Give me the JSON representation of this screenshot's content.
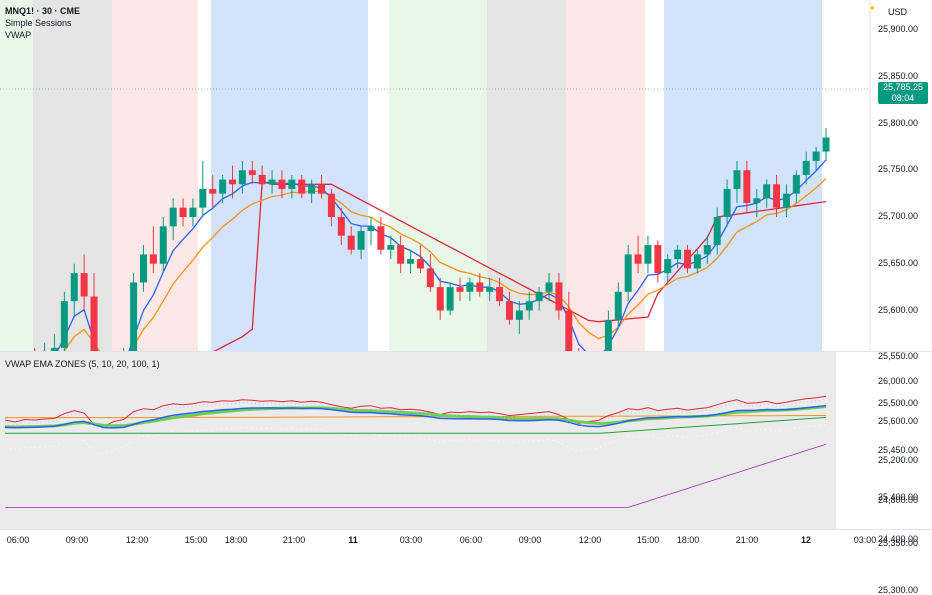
{
  "header": {
    "symbol": "MNQ1! · 30 · CME",
    "indicator_1": "Simple Sessions",
    "indicator_2": "VWAP",
    "currency": "USD"
  },
  "last_price": {
    "value": "25,785.25",
    "countdown": "08:04"
  },
  "price_axis": [
    "25,900.00",
    "25,850.00",
    "25,800.00",
    "25,750.00",
    "25,700.00",
    "25,650.00",
    "25,600.00",
    "25,550.00",
    "25,500.00",
    "25,450.00",
    "25,400.00",
    "25,350.00",
    "25,300.00"
  ],
  "indicator_panel": {
    "title": "VWAP EMA ZONES (5, 10, 20, 100, 1)",
    "axis": [
      "26,000.00",
      "25,600.00",
      "25,200.00",
      "24,800.00",
      "24,400.00"
    ]
  },
  "time_axis": [
    {
      "label": "06:00",
      "bold": false
    },
    {
      "label": "09:00",
      "bold": false
    },
    {
      "label": "12:00",
      "bold": false
    },
    {
      "label": "15:00",
      "bold": false
    },
    {
      "label": "18:00",
      "bold": false
    },
    {
      "label": "21:00",
      "bold": false
    },
    {
      "label": "11",
      "bold": true
    },
    {
      "label": "03:00",
      "bold": false
    },
    {
      "label": "06:00",
      "bold": false
    },
    {
      "label": "09:00",
      "bold": false
    },
    {
      "label": "12:00",
      "bold": false
    },
    {
      "label": "15:00",
      "bold": false
    },
    {
      "label": "18:00",
      "bold": false
    },
    {
      "label": "21:00",
      "bold": false
    },
    {
      "label": "12",
      "bold": true
    },
    {
      "label": "03:00",
      "bold": false
    }
  ],
  "colors": {
    "up": "#089981",
    "down": "#f23645",
    "ema_fast": "#2962ff",
    "ema_slow": "#f7931a",
    "vwap": "#e0273c",
    "session_asia": "#e5e5e5",
    "session_london": "#fde8e8",
    "session_ny": "#d3e3fb",
    "session_green": "#e8f7e8"
  },
  "chart_data": {
    "type": "candlestick",
    "ylim": [
      25260,
      25930
    ],
    "candles": [
      [
        25530,
        25555,
        25520,
        25545
      ],
      [
        25545,
        25550,
        25520,
        25525
      ],
      [
        25525,
        25555,
        25515,
        25550
      ],
      [
        25550,
        25560,
        25540,
        25545
      ],
      [
        25545,
        25565,
        25535,
        25555
      ],
      [
        25555,
        25575,
        25545,
        25560
      ],
      [
        25560,
        25620,
        25540,
        25610
      ],
      [
        25610,
        25650,
        25595,
        25640
      ],
      [
        25640,
        25660,
        25600,
        25615
      ],
      [
        25615,
        25640,
        25480,
        25500
      ],
      [
        25500,
        25530,
        25450,
        25480
      ],
      [
        25480,
        25540,
        25470,
        25530
      ],
      [
        25530,
        25560,
        25515,
        25550
      ],
      [
        25550,
        25640,
        25540,
        25630
      ],
      [
        25630,
        25670,
        25620,
        25660
      ],
      [
        25660,
        25690,
        25640,
        25650
      ],
      [
        25650,
        25700,
        25640,
        25690
      ],
      [
        25690,
        25720,
        25675,
        25710
      ],
      [
        25710,
        25720,
        25690,
        25700
      ],
      [
        25700,
        25720,
        25690,
        25710
      ],
      [
        25710,
        25760,
        25700,
        25730
      ],
      [
        25730,
        25745,
        25710,
        25725
      ],
      [
        25725,
        25745,
        25715,
        25740
      ],
      [
        25740,
        25755,
        25720,
        25735
      ],
      [
        25735,
        25760,
        25725,
        25750
      ],
      [
        25750,
        25760,
        25735,
        25745
      ],
      [
        25745,
        25755,
        25730,
        25735
      ],
      [
        25735,
        25750,
        25725,
        25740
      ],
      [
        25740,
        25750,
        25720,
        25730
      ],
      [
        25730,
        25745,
        25720,
        25740
      ],
      [
        25740,
        25745,
        25720,
        25725
      ],
      [
        25725,
        25740,
        25715,
        25735
      ],
      [
        25735,
        25745,
        25720,
        25725
      ],
      [
        25725,
        25730,
        25690,
        25700
      ],
      [
        25700,
        25710,
        25670,
        25680
      ],
      [
        25680,
        25690,
        25660,
        25665
      ],
      [
        25665,
        25690,
        25655,
        25685
      ],
      [
        25685,
        25700,
        25670,
        25690
      ],
      [
        25690,
        25700,
        25660,
        25665
      ],
      [
        25665,
        25680,
        25655,
        25670
      ],
      [
        25670,
        25680,
        25640,
        25650
      ],
      [
        25650,
        25665,
        25640,
        25655
      ],
      [
        25655,
        25670,
        25640,
        25645
      ],
      [
        25645,
        25660,
        25620,
        25625
      ],
      [
        25625,
        25635,
        25590,
        25600
      ],
      [
        25600,
        25630,
        25595,
        25625
      ],
      [
        25625,
        25635,
        25610,
        25620
      ],
      [
        25620,
        25635,
        25610,
        25630
      ],
      [
        25630,
        25640,
        25615,
        25620
      ],
      [
        25620,
        25635,
        25610,
        25625
      ],
      [
        25625,
        25635,
        25605,
        25610
      ],
      [
        25610,
        25620,
        25585,
        25590
      ],
      [
        25590,
        25610,
        25575,
        25600
      ],
      [
        25600,
        25620,
        25590,
        25610
      ],
      [
        25610,
        25625,
        25600,
        25620
      ],
      [
        25620,
        25640,
        25610,
        25630
      ],
      [
        25630,
        25640,
        25590,
        25600
      ],
      [
        25600,
        25620,
        25540,
        25550
      ],
      [
        25550,
        25560,
        25490,
        25510
      ],
      [
        25510,
        25540,
        25500,
        25530
      ],
      [
        25530,
        25545,
        25485,
        25540
      ],
      [
        25540,
        25600,
        25530,
        25590
      ],
      [
        25590,
        25630,
        25580,
        25620
      ],
      [
        25620,
        25670,
        25610,
        25660
      ],
      [
        25660,
        25680,
        25640,
        25650
      ],
      [
        25650,
        25680,
        25640,
        25670
      ],
      [
        25670,
        25675,
        25630,
        25640
      ],
      [
        25640,
        25660,
        25630,
        25655
      ],
      [
        25655,
        25670,
        25645,
        25665
      ],
      [
        25665,
        25670,
        25640,
        25645
      ],
      [
        25645,
        25665,
        25640,
        25660
      ],
      [
        25660,
        25680,
        25650,
        25670
      ],
      [
        25670,
        25710,
        25660,
        25700
      ],
      [
        25700,
        25740,
        25690,
        25730
      ],
      [
        25730,
        25760,
        25715,
        25750
      ],
      [
        25750,
        25760,
        25705,
        25715
      ],
      [
        25715,
        25730,
        25700,
        25720
      ],
      [
        25720,
        25740,
        25710,
        25735
      ],
      [
        25735,
        25745,
        25700,
        25710
      ],
      [
        25710,
        25735,
        25700,
        25725
      ],
      [
        25725,
        25750,
        25715,
        25745
      ],
      [
        25745,
        25770,
        25735,
        25760
      ],
      [
        25760,
        25775,
        25750,
        25770
      ],
      [
        25770,
        25795,
        25760,
        25785
      ]
    ]
  }
}
